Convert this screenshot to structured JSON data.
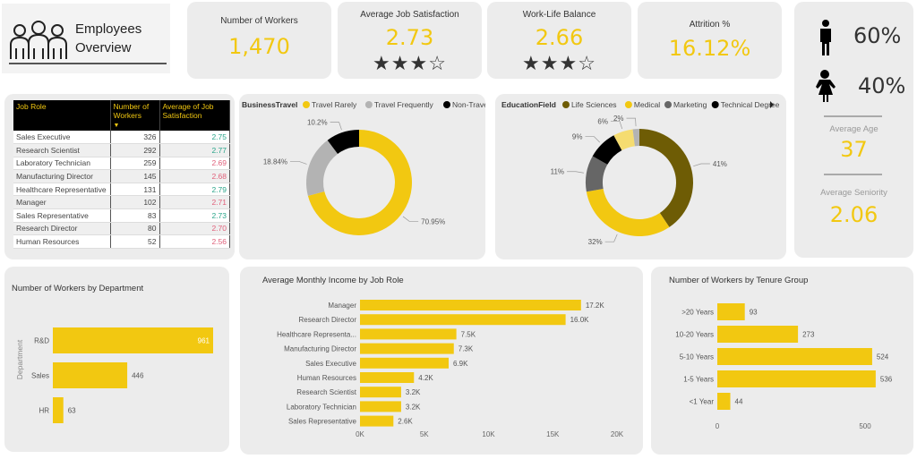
{
  "header": {
    "title_line1": "Employees",
    "title_line2": "Overview",
    "icon": "people-group-icon"
  },
  "kpis": [
    {
      "title": "Number of Workers",
      "value": "1,470"
    },
    {
      "title": "Average Job Satisfaction",
      "value": "2.73",
      "stars": "★★★☆",
      "rating": 3
    },
    {
      "title": "Work-Life Balance",
      "value": "2.66",
      "stars": "★★★☆",
      "rating": 3
    },
    {
      "title": "Attrition %",
      "value": "16.12%"
    }
  ],
  "gender": {
    "male": "60%",
    "female": "40%",
    "avg_age_label": "Average Age",
    "avg_age": "37",
    "avg_seniority_label": "Average Seniority",
    "avg_seniority": "2.06"
  },
  "colors": {
    "accent": "#f2c811",
    "good": "#2aa58a",
    "bad": "#e0607a"
  },
  "table": {
    "headers": [
      "Job Role",
      "Number of Workers",
      "Average of Job Satisfaction"
    ],
    "sort_indicator": "▼",
    "rows": [
      [
        "Sales Executive",
        "326",
        "2.75",
        "good"
      ],
      [
        "Research Scientist",
        "292",
        "2.77",
        "good"
      ],
      [
        "Laboratory Technician",
        "259",
        "2.69",
        "bad"
      ],
      [
        "Manufacturing Director",
        "145",
        "2.68",
        "bad"
      ],
      [
        "Healthcare Representative",
        "131",
        "2.79",
        "good"
      ],
      [
        "Manager",
        "102",
        "2.71",
        "bad"
      ],
      [
        "Sales Representative",
        "83",
        "2.73",
        "good"
      ],
      [
        "Research Director",
        "80",
        "2.70",
        "bad"
      ],
      [
        "Human Resources",
        "52",
        "2.56",
        "bad"
      ]
    ]
  },
  "chart_data": [
    {
      "type": "pie",
      "legend_title": "BusinessTravel",
      "legend_position": "top",
      "slices": [
        {
          "name": "Travel Rarely",
          "value": 70.95,
          "label": "70.95%",
          "color": "#f2c811"
        },
        {
          "name": "Travel Frequently",
          "value": 18.84,
          "label": "18.84%",
          "color": "#b3b3b3"
        },
        {
          "name": "Non-Travel",
          "value": 10.2,
          "label": "10.2%",
          "color": "#000000"
        }
      ]
    },
    {
      "type": "pie",
      "legend_title": "EducationField",
      "legend_position": "top",
      "slices": [
        {
          "name": "Life Sciences",
          "value": 41,
          "label": "41%",
          "color": "#6e5c05"
        },
        {
          "name": "Medical",
          "value": 32,
          "label": "32%",
          "color": "#f2c811"
        },
        {
          "name": "Marketing",
          "value": 11,
          "label": "11%",
          "color": "#666666"
        },
        {
          "name": "Technical Degree",
          "value": 9,
          "label": "9%",
          "color": "#000000"
        },
        {
          "value": 6,
          "label": "6%",
          "color": "#f5dc70"
        },
        {
          "value": 2,
          "label": "2%",
          "color": "#b3b3b3"
        }
      ]
    },
    {
      "type": "bar",
      "orientation": "horizontal",
      "title": "Number of Workers by Department",
      "ylabel": "Department",
      "categories": [
        "R&D",
        "Sales",
        "HR"
      ],
      "values": [
        961,
        446,
        63
      ],
      "labels": [
        "961",
        "446",
        "63"
      ]
    },
    {
      "type": "bar",
      "orientation": "horizontal",
      "title": "Average Monthly Income by Job Role",
      "categories": [
        "Manager",
        "Research Director",
        "Healthcare Representa...",
        "Manufacturing Director",
        "Sales Executive",
        "Human Resources",
        "Research Scientist",
        "Laboratory Technician",
        "Sales Representative"
      ],
      "values": [
        17200,
        16000,
        7500,
        7300,
        6900,
        4200,
        3200,
        3200,
        2600
      ],
      "labels": [
        "17.2K",
        "16.0K",
        "7.5K",
        "7.3K",
        "6.9K",
        "4.2K",
        "3.2K",
        "3.2K",
        "2.6K"
      ],
      "xlim": [
        0,
        20000
      ],
      "xticks": [
        "0K",
        "5K",
        "10K",
        "15K",
        "20K"
      ]
    },
    {
      "type": "bar",
      "orientation": "horizontal",
      "title": "Number of Workers by Tenure Group",
      "categories": [
        ">20 Years",
        "10-20 Years",
        "5-10 Years",
        "1-5 Years",
        "<1 Year"
      ],
      "values": [
        93,
        273,
        524,
        536,
        44
      ],
      "labels": [
        "93",
        "273",
        "524",
        "536",
        "44"
      ],
      "xticks": [
        "0",
        "500"
      ]
    }
  ]
}
